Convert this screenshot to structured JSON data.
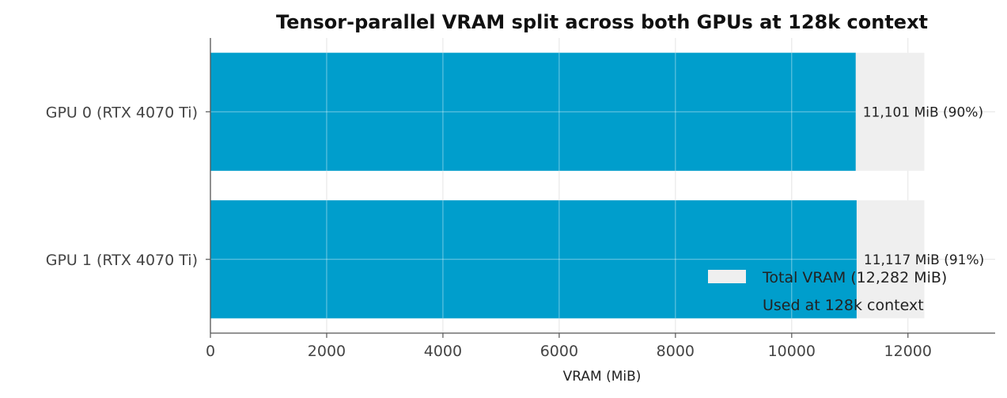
{
  "chart_data": {
    "type": "bar",
    "orientation": "horizontal",
    "title": "Tensor-parallel VRAM split across both GPUs at 128k context",
    "xlabel": "VRAM (MiB)",
    "ylabel": "",
    "xlim": [
      0,
      13500
    ],
    "xticks": [
      0,
      2000,
      4000,
      6000,
      8000,
      10000,
      12000
    ],
    "categories": [
      "GPU 0 (RTX 4070 Ti)",
      "GPU 1 (RTX 4070 Ti)"
    ],
    "series": [
      {
        "name": "Total VRAM (12,282 MiB)",
        "color": "#efefef",
        "values": [
          12282,
          12282
        ]
      },
      {
        "name": "Used at 128k context",
        "color": "#009ecc",
        "values": [
          11101,
          11117
        ]
      }
    ],
    "data_labels": [
      "11,101 MiB (90%)",
      "11,117 MiB (91%)"
    ],
    "grid": true,
    "legend_position": "lower-right"
  }
}
